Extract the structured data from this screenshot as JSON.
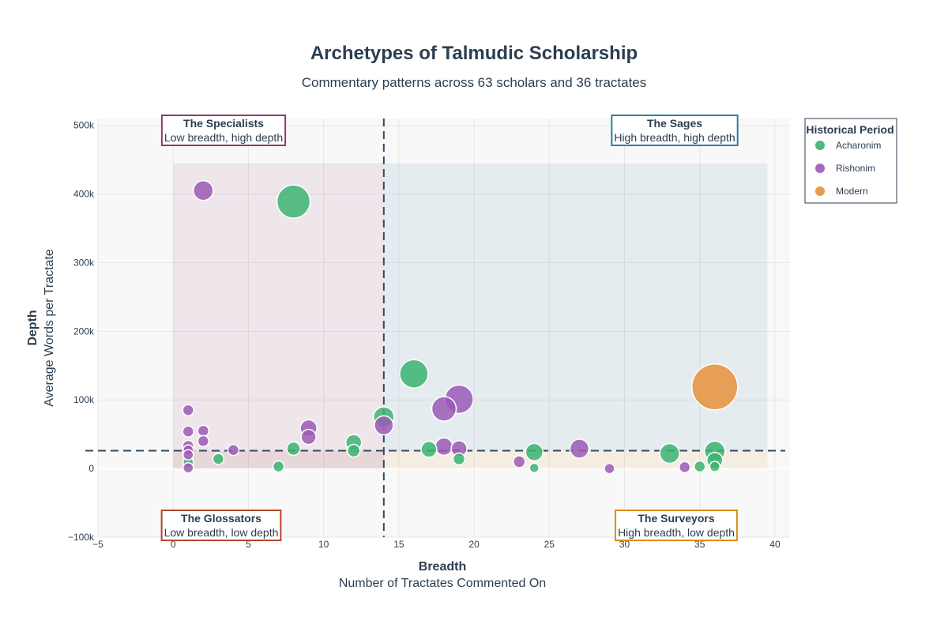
{
  "chart_data": {
    "type": "scatter",
    "title": "Archetypes of Talmudic Scholarship",
    "subtitle": "Commentary patterns across 63 scholars and 36 tractates",
    "xlabel": "Breadth",
    "xlabel_sub": "Number of Tractates Commented On",
    "ylabel": "Depth",
    "ylabel_sub": "Average Words per Tractate",
    "xlim": [
      -5,
      41
    ],
    "ylim": [
      -100000,
      510000
    ],
    "x_ticks": [
      -5,
      0,
      5,
      10,
      15,
      20,
      25,
      30,
      35,
      40
    ],
    "y_ticks": [
      {
        "value": -100000,
        "label": "−100k"
      },
      {
        "value": 0,
        "label": "0"
      },
      {
        "value": 100000,
        "label": "100k"
      },
      {
        "value": 200000,
        "label": "200k"
      },
      {
        "value": 300000,
        "label": "300k"
      },
      {
        "value": 400000,
        "label": "400k"
      },
      {
        "value": 500000,
        "label": "500k"
      }
    ],
    "threshold_x": 14,
    "threshold_y": 26000,
    "grid": true,
    "legend_title": "Historical Period",
    "legend_placement": "right",
    "quadrants": [
      {
        "name": "The Specialists",
        "desc": "Low breadth, high depth",
        "color": "#8e3b6f",
        "x_range": [
          0,
          14
        ],
        "y_range": [
          0,
          445000
        ]
      },
      {
        "name": "The Sages",
        "desc": "High breadth, high depth",
        "color": "#2a7fa5",
        "x_range": [
          14,
          39.5
        ],
        "y_range": [
          26000,
          445000
        ]
      },
      {
        "name": "The Glossators",
        "desc": "Low breadth, low depth",
        "color": "#b5472a",
        "x_range": [
          0,
          14
        ],
        "y_range": [
          0,
          26000
        ]
      },
      {
        "name": "The Surveyors",
        "desc": "High breadth, low depth",
        "color": "#e08a10",
        "x_range": [
          14,
          39.5
        ],
        "y_range": [
          0,
          26000
        ]
      }
    ],
    "series": [
      {
        "name": "Acharonim",
        "color": "#3cb371",
        "points": [
          {
            "x": 8,
            "y": 389000,
            "size": 42
          },
          {
            "x": 16,
            "y": 138000,
            "size": 36
          },
          {
            "x": 14,
            "y": 75000,
            "size": 26
          },
          {
            "x": 12,
            "y": 38000,
            "size": 20
          },
          {
            "x": 12,
            "y": 26000,
            "size": 16
          },
          {
            "x": 8,
            "y": 29000,
            "size": 17
          },
          {
            "x": 17,
            "y": 28000,
            "size": 20
          },
          {
            "x": 19,
            "y": 14000,
            "size": 15
          },
          {
            "x": 24,
            "y": 24000,
            "size": 22
          },
          {
            "x": 24,
            "y": 1000,
            "size": 12
          },
          {
            "x": 33,
            "y": 22000,
            "size": 25
          },
          {
            "x": 36,
            "y": 25000,
            "size": 26
          },
          {
            "x": 36,
            "y": 12000,
            "size": 20
          },
          {
            "x": 36,
            "y": 3000,
            "size": 13
          },
          {
            "x": 35,
            "y": 3000,
            "size": 14
          },
          {
            "x": 3,
            "y": 14000,
            "size": 14
          },
          {
            "x": 7,
            "y": 3000,
            "size": 14
          },
          {
            "x": 1,
            "y": 9000,
            "size": 13
          }
        ]
      },
      {
        "name": "Rishonim",
        "color": "#9b59b6",
        "points": [
          {
            "x": 2,
            "y": 405000,
            "size": 25
          },
          {
            "x": 19,
            "y": 101000,
            "size": 36
          },
          {
            "x": 18,
            "y": 87000,
            "size": 31
          },
          {
            "x": 14,
            "y": 63000,
            "size": 24
          },
          {
            "x": 9,
            "y": 59000,
            "size": 21
          },
          {
            "x": 9,
            "y": 46000,
            "size": 19
          },
          {
            "x": 18,
            "y": 32000,
            "size": 22
          },
          {
            "x": 19,
            "y": 29000,
            "size": 20
          },
          {
            "x": 27,
            "y": 29000,
            "size": 24
          },
          {
            "x": 1,
            "y": 85000,
            "size": 14
          },
          {
            "x": 1,
            "y": 54000,
            "size": 14
          },
          {
            "x": 2,
            "y": 55000,
            "size": 14
          },
          {
            "x": 2,
            "y": 40000,
            "size": 14
          },
          {
            "x": 1,
            "y": 33000,
            "size": 14
          },
          {
            "x": 1,
            "y": 27000,
            "size": 13
          },
          {
            "x": 1,
            "y": 20000,
            "size": 13
          },
          {
            "x": 1,
            "y": 1000,
            "size": 13
          },
          {
            "x": 4,
            "y": 27000,
            "size": 14
          },
          {
            "x": 23,
            "y": 10000,
            "size": 15
          },
          {
            "x": 29,
            "y": 0,
            "size": 13
          },
          {
            "x": 34,
            "y": 2000,
            "size": 14
          }
        ]
      },
      {
        "name": "Modern",
        "color": "#e8913a",
        "points": [
          {
            "x": 36,
            "y": 119000,
            "size": 58
          }
        ]
      }
    ]
  }
}
